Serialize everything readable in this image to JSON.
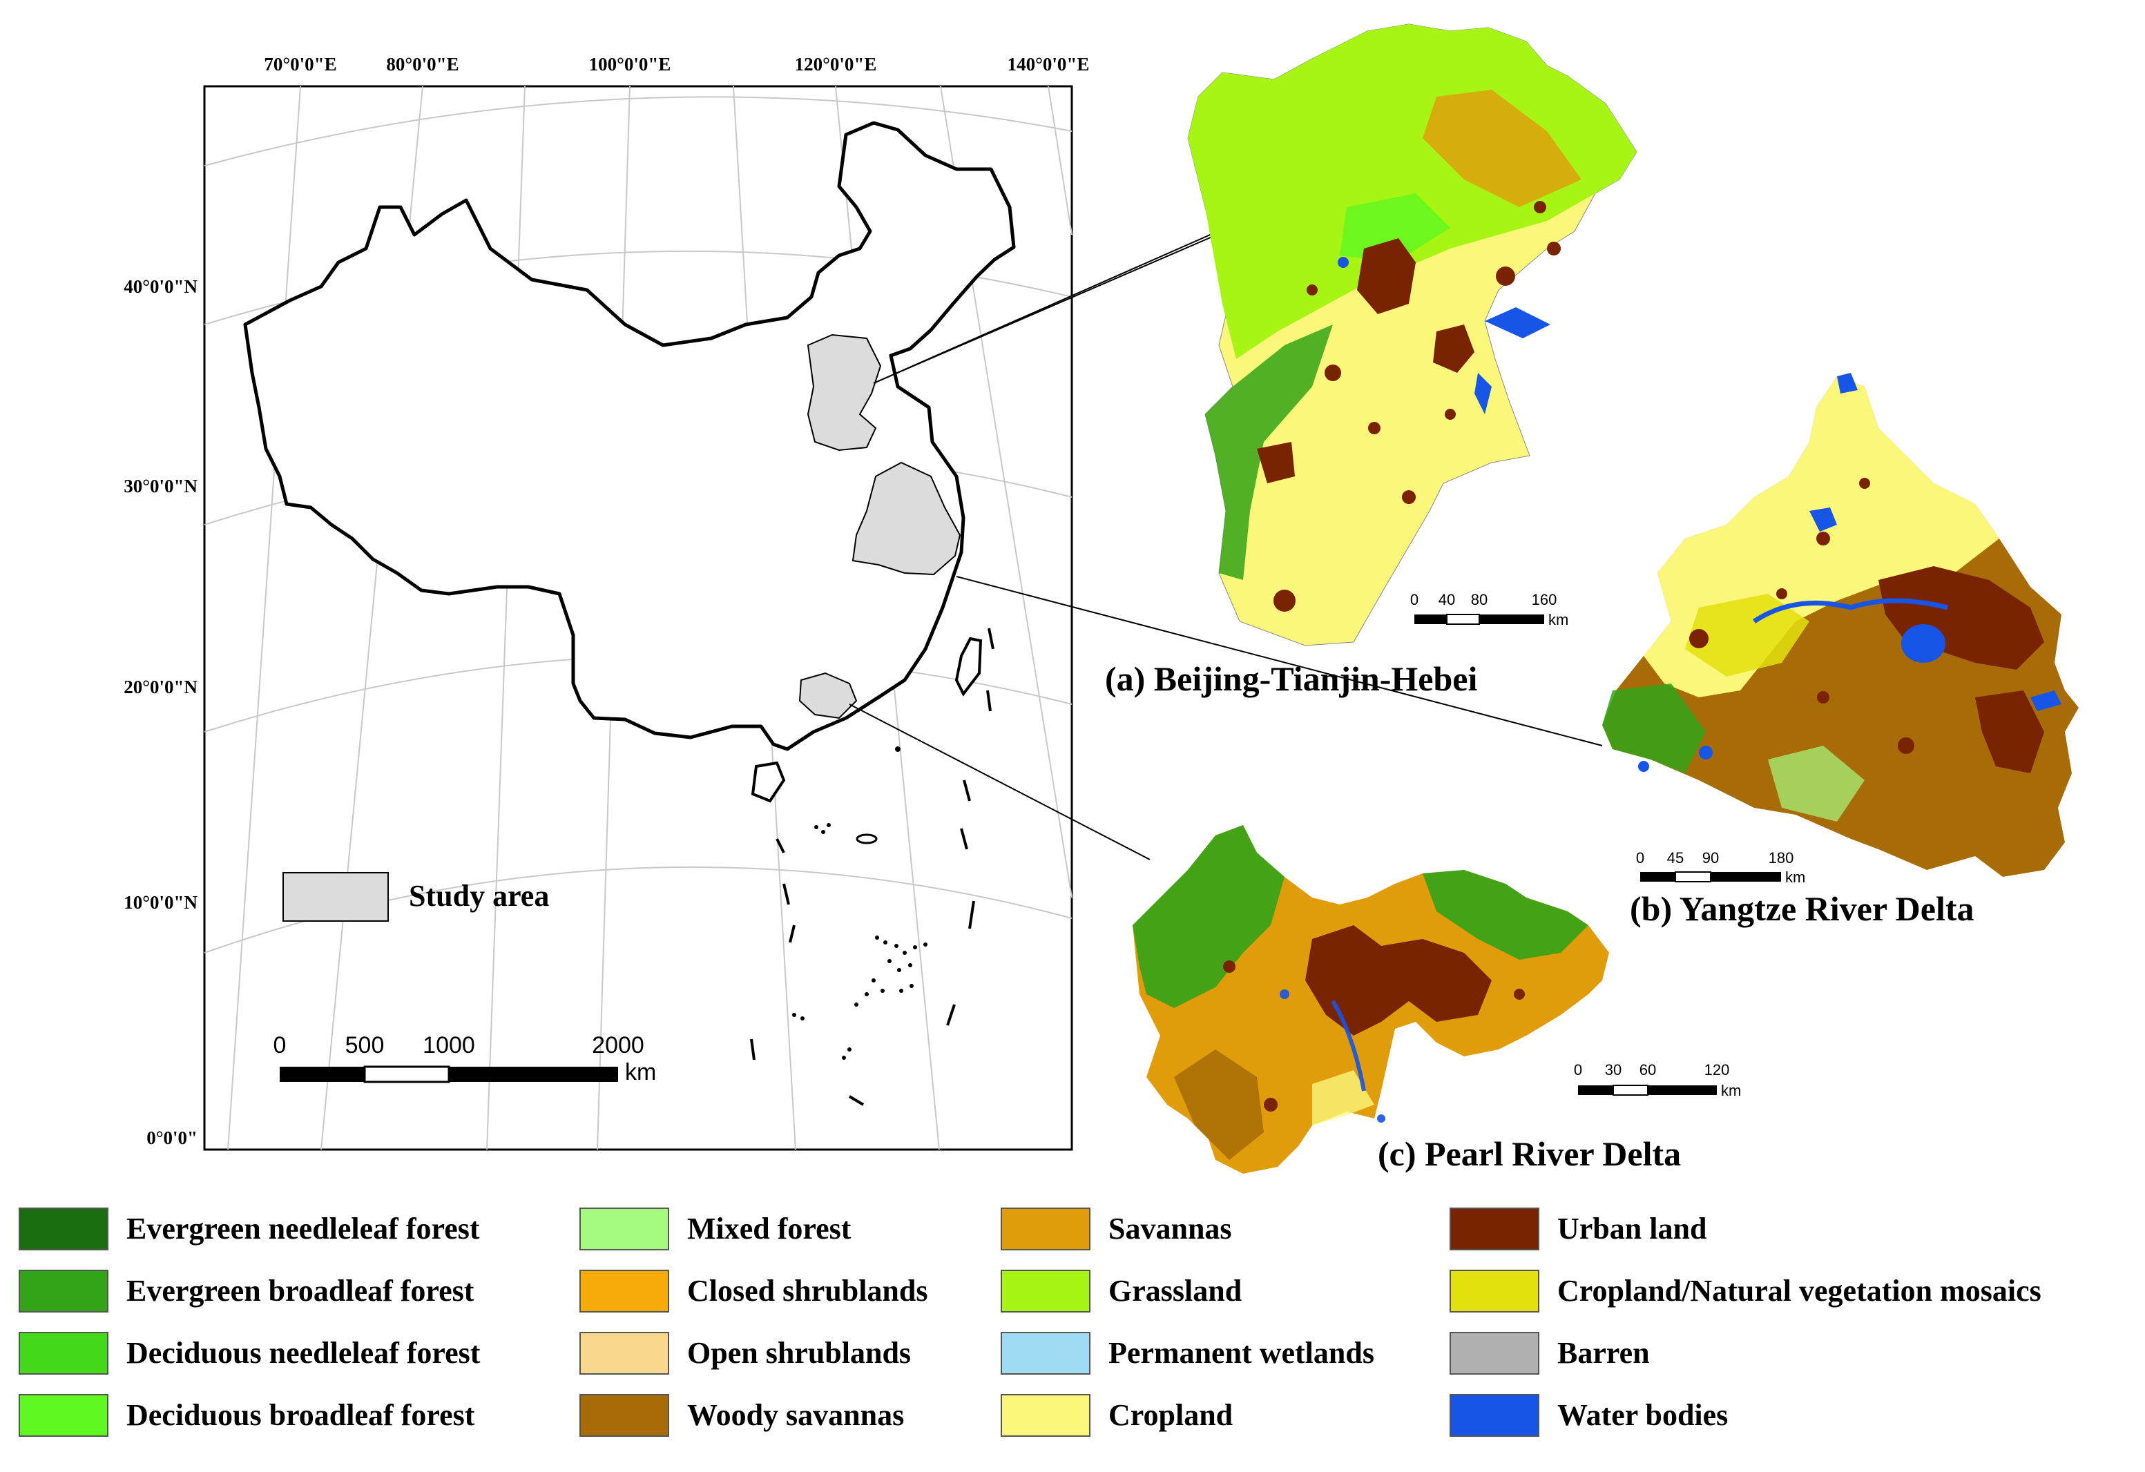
{
  "main_map": {
    "longitude_labels": [
      "70°0'0\"E",
      "80°0'0\"E",
      "100°0'0\"E",
      "120°0'0\"E",
      "140°0'0\"E"
    ],
    "latitude_labels": [
      "40°0'0\"N",
      "30°0'0\"N",
      "20°0'0\"N",
      "10°0'0\"N",
      "0°0'0\""
    ],
    "inset_legend_label": "Study area",
    "scale_bar": {
      "ticks": [
        "0",
        "500",
        "1000",
        "2000"
      ],
      "unit": "km"
    },
    "study_fill": "#dcdcdc"
  },
  "regions": [
    {
      "label": "(a) Beijing-Tianjin-Hebei",
      "scale_ticks": [
        "0",
        "40",
        "80",
        "160"
      ],
      "unit": "km"
    },
    {
      "label": "(b) Yangtze River Delta",
      "scale_ticks": [
        "0",
        "45",
        "90",
        "180"
      ],
      "unit": "km"
    },
    {
      "label": "(c) Pearl River Delta",
      "scale_ticks": [
        "0",
        "30",
        "60",
        "120"
      ],
      "unit": "km"
    }
  ],
  "legend": [
    {
      "label": "Evergreen needleleaf forest",
      "color": "#1a6e0f"
    },
    {
      "label": "Evergreen broadleaf forest",
      "color": "#33a318"
    },
    {
      "label": "Deciduous needleleaf forest",
      "color": "#44d81b"
    },
    {
      "label": "Deciduous broadleaf forest",
      "color": "#5ef71e"
    },
    {
      "label": "Mixed forest",
      "color": "#a5fa80"
    },
    {
      "label": "Closed shrublands",
      "color": "#f7ab09"
    },
    {
      "label": "Open shrublands",
      "color": "#fbd68d"
    },
    {
      "label": "Woody savannas",
      "color": "#a76c07"
    },
    {
      "label": "Savannas",
      "color": "#e09c0b"
    },
    {
      "label": "Grassland",
      "color": "#a8f515"
    },
    {
      "label": "Permanent wetlands",
      "color": "#9fdcf3"
    },
    {
      "label": "Cropland",
      "color": "#fbf77a"
    },
    {
      "label": "Urban land",
      "color": "#7a2303"
    },
    {
      "label": "Cropland/Natural vegetation mosaics",
      "color": "#e3e10d"
    },
    {
      "label": "Barren",
      "color": "#b0b0b0"
    },
    {
      "label": "Water bodies",
      "color": "#1655e6"
    }
  ]
}
